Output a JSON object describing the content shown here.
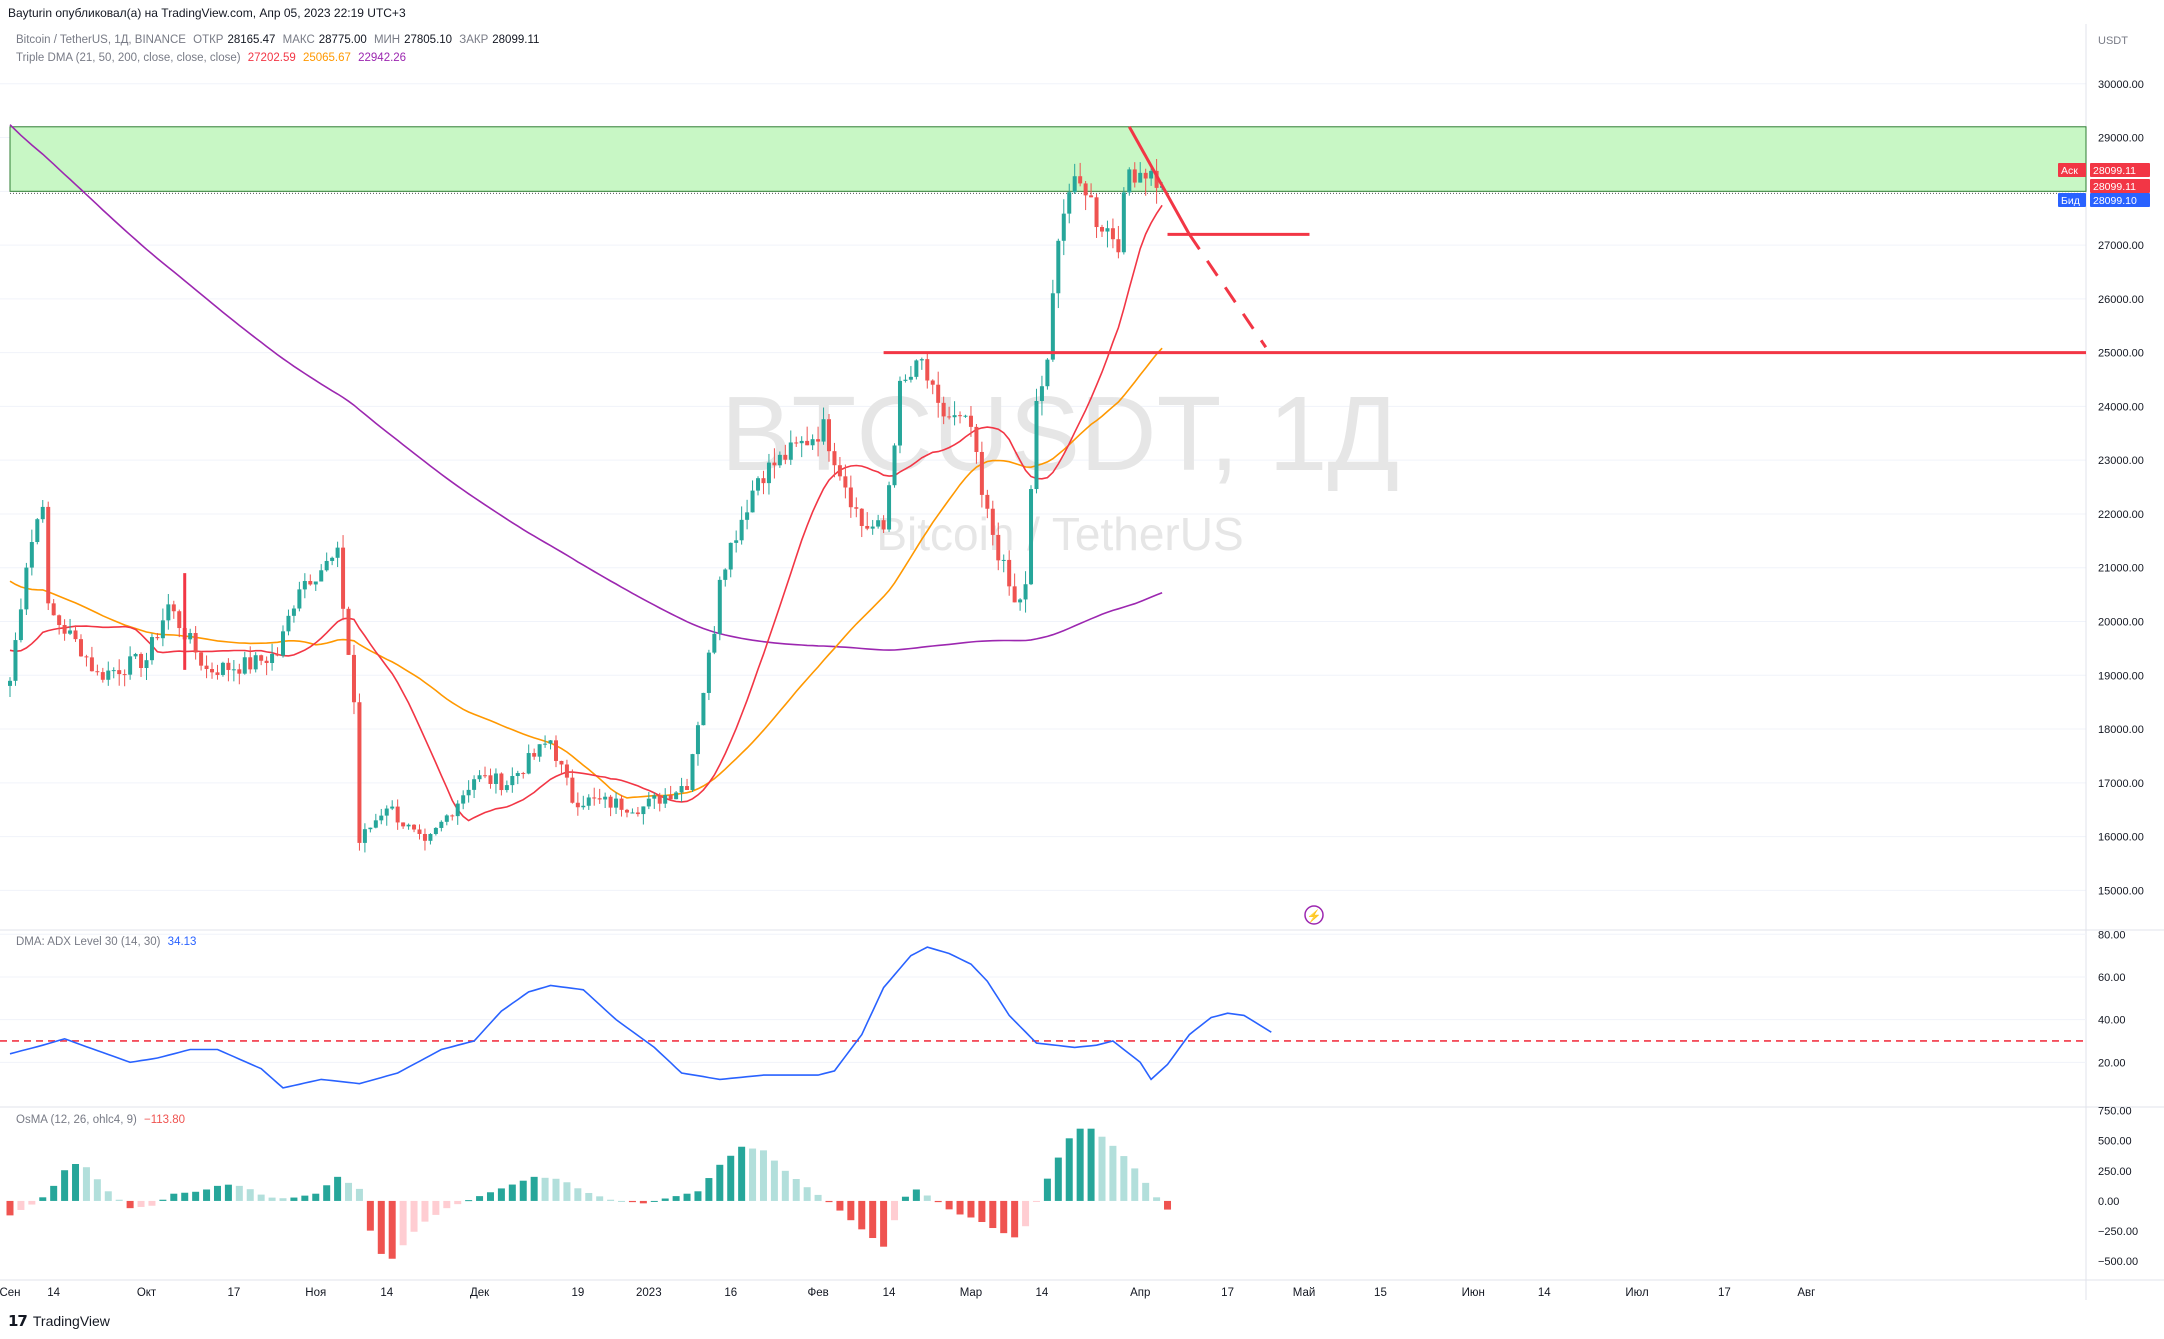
{
  "header": {
    "published": "Bayturin опубликовал(а) на TradingView.com, Апр 05, 2023 22:19 UTC+3"
  },
  "symbol": {
    "name": "Bitcoin / TetherUS, 1Д, BINANCE",
    "o_label": "ОТКР",
    "o": "28165.47",
    "h_label": "МАКС",
    "h": "28775.00",
    "l_label": "МИН",
    "l": "27805.10",
    "c_label": "ЗАКР",
    "c": "28099.11"
  },
  "indicator": {
    "name": "Triple DMA (21, 50, 200, close, close, close)",
    "v1": "27202.59",
    "v2": "25065.67",
    "v3": "22942.26"
  },
  "watermark": {
    "ticker": "BTCUSDT, 1Д",
    "desc": "Bitcoin / TetherUS"
  },
  "price_axis": {
    "currency": "USDT",
    "ask_label": "Аск",
    "ask": "28099.11",
    "last": "28099.11",
    "bid_label": "Бид",
    "bid": "28099.10"
  },
  "adx": {
    "name": "DMA: ADX Level 30 (14, 30)",
    "value": "34.13"
  },
  "osma": {
    "name": "OsMA (12, 26, ohlc4, 9)",
    "value": "−113.80"
  },
  "footer": {
    "brand": "TradingView"
  },
  "colors": {
    "up": "#26a69a",
    "down": "#ef5350",
    "ma21": "#f23645",
    "ma50": "#ff9800",
    "ma200": "#9c27b0",
    "adx": "#2962ff",
    "zone": "#c8f7c5",
    "drawing": "#f23645"
  },
  "chart_data": [
    {
      "type": "candlestick",
      "title": "Bitcoin / TetherUS, 1Д, BINANCE",
      "x_ticks": [
        "Сен",
        "14",
        "Окт",
        "17",
        "Ноя",
        "14",
        "Дек",
        "19",
        "2023",
        "16",
        "Фев",
        "14",
        "Мар",
        "14",
        "Апр",
        "17",
        "Май",
        "15",
        "Июн",
        "14",
        "Июл",
        "17",
        "Авг"
      ],
      "y_ticks": [
        15000,
        16000,
        17000,
        18000,
        19000,
        20000,
        21000,
        22000,
        23000,
        24000,
        25000,
        26000,
        27000,
        28000,
        29000,
        30000
      ],
      "y_tick_labels": [
        "15000.00",
        "16000.00",
        "17000.00",
        "18000.00",
        "19000.00",
        "20000.00",
        "21000.00",
        "22000.00",
        "23000.00",
        "24000.00",
        "25000.00",
        "26000.00",
        "27000.00",
        "28000.00",
        "29000.00",
        "30000.00"
      ],
      "ylim": [
        14300,
        31000
      ],
      "x_start": "2022-09-06",
      "close_anchors": [
        [
          "2022-09-06",
          18900
        ],
        [
          "2022-09-09",
          21100
        ],
        [
          "2022-09-12",
          22300
        ],
        [
          "2022-09-13",
          20200
        ],
        [
          "2022-09-19",
          19500
        ],
        [
          "2022-09-22",
          19000
        ],
        [
          "2022-10-01",
          19300
        ],
        [
          "2022-10-05",
          20300
        ],
        [
          "2022-10-12",
          19100
        ],
        [
          "2022-10-20",
          19200
        ],
        [
          "2022-10-25",
          19400
        ],
        [
          "2022-10-29",
          20700
        ],
        [
          "2022-11-05",
          21200
        ],
        [
          "2022-11-08",
          18500
        ],
        [
          "2022-11-09",
          15900
        ],
        [
          "2022-11-14",
          16600
        ],
        [
          "2022-11-21",
          15800
        ],
        [
          "2022-11-30",
          17100
        ],
        [
          "2022-12-06",
          17000
        ],
        [
          "2022-12-14",
          17800
        ],
        [
          "2022-12-18",
          16700
        ],
        [
          "2022-12-31",
          16550
        ],
        [
          "2023-01-08",
          17000
        ],
        [
          "2023-01-13",
          19900
        ],
        [
          "2023-01-14",
          20900
        ],
        [
          "2023-01-21",
          22700
        ],
        [
          "2023-02-02",
          23600
        ],
        [
          "2023-02-09",
          21800
        ],
        [
          "2023-02-13",
          21700
        ],
        [
          "2023-02-16",
          24300
        ],
        [
          "2023-02-20",
          24800
        ],
        [
          "2023-02-23",
          23900
        ],
        [
          "2023-03-01",
          23600
        ],
        [
          "2023-03-03",
          22300
        ],
        [
          "2023-03-09",
          20300
        ],
        [
          "2023-03-11",
          20600
        ],
        [
          "2023-03-13",
          24100
        ],
        [
          "2023-03-15",
          24700
        ],
        [
          "2023-03-17",
          27300
        ],
        [
          "2023-03-19",
          28000
        ],
        [
          "2023-03-22",
          28100
        ],
        [
          "2023-03-24",
          27500
        ],
        [
          "2023-03-28",
          27100
        ],
        [
          "2023-03-30",
          28400
        ],
        [
          "2023-04-02",
          28400
        ],
        [
          "2023-04-05",
          28099
        ]
      ],
      "series": [
        {
          "name": "DMA 21",
          "value_last": 27202.59
        },
        {
          "name": "DMA 50",
          "value_last": 25065.67
        },
        {
          "name": "DMA 200",
          "value_last": 22942.26
        }
      ],
      "annotations": {
        "resistance_zone": [
          28000,
          29200
        ],
        "support_line": 25000,
        "support_line_from": "2023-02-13",
        "level_line": 27200,
        "level_line_from": "2023-04-06",
        "level_line_to": "2023-05-02",
        "trend_from": [
          "2023-03-30",
          29200
        ],
        "trend_to": [
          "2023-04-10",
          27200
        ],
        "projection_from": [
          "2023-04-10",
          27200
        ],
        "projection_to": [
          "2023-04-24",
          25100
        ]
      }
    },
    {
      "type": "line",
      "title": "DMA: ADX Level 30 (14, 30)",
      "y_ticks": [
        20,
        40,
        60,
        80
      ],
      "y_tick_labels": [
        "20.00",
        "40.00",
        "60.00",
        "80.00"
      ],
      "ylim": [
        0,
        82
      ],
      "level": 30,
      "anchors": [
        [
          "2022-09-06",
          24
        ],
        [
          "2022-09-12",
          28
        ],
        [
          "2022-09-16",
          31
        ],
        [
          "2022-09-28",
          20
        ],
        [
          "2022-10-03",
          22
        ],
        [
          "2022-10-09",
          26
        ],
        [
          "2022-10-14",
          26
        ],
        [
          "2022-10-22",
          17
        ],
        [
          "2022-10-26",
          8
        ],
        [
          "2022-11-02",
          12
        ],
        [
          "2022-11-09",
          10
        ],
        [
          "2022-11-16",
          15
        ],
        [
          "2022-11-24",
          26
        ],
        [
          "2022-11-30",
          30
        ],
        [
          "2022-12-05",
          44
        ],
        [
          "2022-12-10",
          53
        ],
        [
          "2022-12-14",
          56
        ],
        [
          "2022-12-20",
          54
        ],
        [
          "2022-12-26",
          40
        ],
        [
          "2023-01-02",
          27
        ],
        [
          "2023-01-07",
          15
        ],
        [
          "2023-01-14",
          12
        ],
        [
          "2023-01-22",
          14
        ],
        [
          "2023-02-01",
          14
        ],
        [
          "2023-02-04",
          16
        ],
        [
          "2023-02-09",
          33
        ],
        [
          "2023-02-13",
          55
        ],
        [
          "2023-02-18",
          70
        ],
        [
          "2023-02-21",
          74
        ],
        [
          "2023-02-25",
          71
        ],
        [
          "2023-03-01",
          66
        ],
        [
          "2023-03-04",
          58
        ],
        [
          "2023-03-08",
          42
        ],
        [
          "2023-03-13",
          29
        ],
        [
          "2023-03-20",
          27
        ],
        [
          "2023-03-24",
          28
        ],
        [
          "2023-03-27",
          30
        ],
        [
          "2023-04-01",
          20
        ],
        [
          "2023-04-03",
          12
        ],
        [
          "2023-04-06",
          19
        ],
        [
          "2023-04-10",
          33
        ],
        [
          "2023-04-14",
          41
        ],
        [
          "2023-04-17",
          43
        ],
        [
          "2023-04-20",
          42
        ],
        [
          "2023-04-25",
          34.13
        ]
      ]
    },
    {
      "type": "bar",
      "title": "OsMA (12, 26, ohlc4, 9)",
      "y_ticks": [
        -500,
        -250,
        0,
        250,
        500,
        750
      ],
      "y_tick_labels": [
        "−500.00",
        "−250.00",
        "0.00",
        "250.00",
        "500.00",
        "750.00"
      ],
      "ylim": [
        -640,
        780
      ],
      "anchors": [
        [
          "2022-09-06",
          -120
        ],
        [
          "2022-09-10",
          -30
        ],
        [
          "2022-09-13",
          60
        ],
        [
          "2022-09-17",
          320
        ],
        [
          "2022-09-20",
          280
        ],
        [
          "2022-09-24",
          80
        ],
        [
          "2022-09-28",
          -60
        ],
        [
          "2022-10-02",
          -40
        ],
        [
          "2022-10-06",
          60
        ],
        [
          "2022-10-11",
          80
        ],
        [
          "2022-10-15",
          140
        ],
        [
          "2022-10-19",
          120
        ],
        [
          "2022-10-23",
          30
        ],
        [
          "2022-10-27",
          20
        ],
        [
          "2022-11-01",
          60
        ],
        [
          "2022-11-05",
          200
        ],
        [
          "2022-11-09",
          100
        ],
        [
          "2022-11-12",
          -420
        ],
        [
          "2022-11-15",
          -480
        ],
        [
          "2022-11-20",
          -200
        ],
        [
          "2022-11-25",
          -60
        ],
        [
          "2022-12-01",
          40
        ],
        [
          "2022-12-06",
          120
        ],
        [
          "2022-12-11",
          200
        ],
        [
          "2022-12-16",
          180
        ],
        [
          "2022-12-20",
          80
        ],
        [
          "2022-12-25",
          10
        ],
        [
          "2022-12-31",
          -20
        ],
        [
          "2023-01-05",
          30
        ],
        [
          "2023-01-10",
          80
        ],
        [
          "2023-01-14",
          300
        ],
        [
          "2023-01-18",
          450
        ],
        [
          "2023-01-22",
          420
        ],
        [
          "2023-01-26",
          250
        ],
        [
          "2023-01-31",
          80
        ],
        [
          "2023-02-04",
          -40
        ],
        [
          "2023-02-08",
          -200
        ],
        [
          "2023-02-13",
          -380
        ],
        [
          "2023-02-16",
          -50
        ],
        [
          "2023-02-18",
          120
        ],
        [
          "2023-02-22",
          20
        ],
        [
          "2023-02-26",
          -100
        ],
        [
          "2023-03-02",
          -150
        ],
        [
          "2023-03-06",
          -250
        ],
        [
          "2023-03-10",
          -320
        ],
        [
          "2023-03-12",
          -100
        ],
        [
          "2023-03-16",
          280
        ],
        [
          "2023-03-20",
          600
        ],
        [
          "2023-03-23",
          600
        ],
        [
          "2023-03-26",
          500
        ],
        [
          "2023-03-30",
          330
        ],
        [
          "2023-04-02",
          150
        ],
        [
          "2023-04-05",
          -30
        ],
        [
          "2023-04-07",
          -113.8
        ]
      ]
    }
  ]
}
